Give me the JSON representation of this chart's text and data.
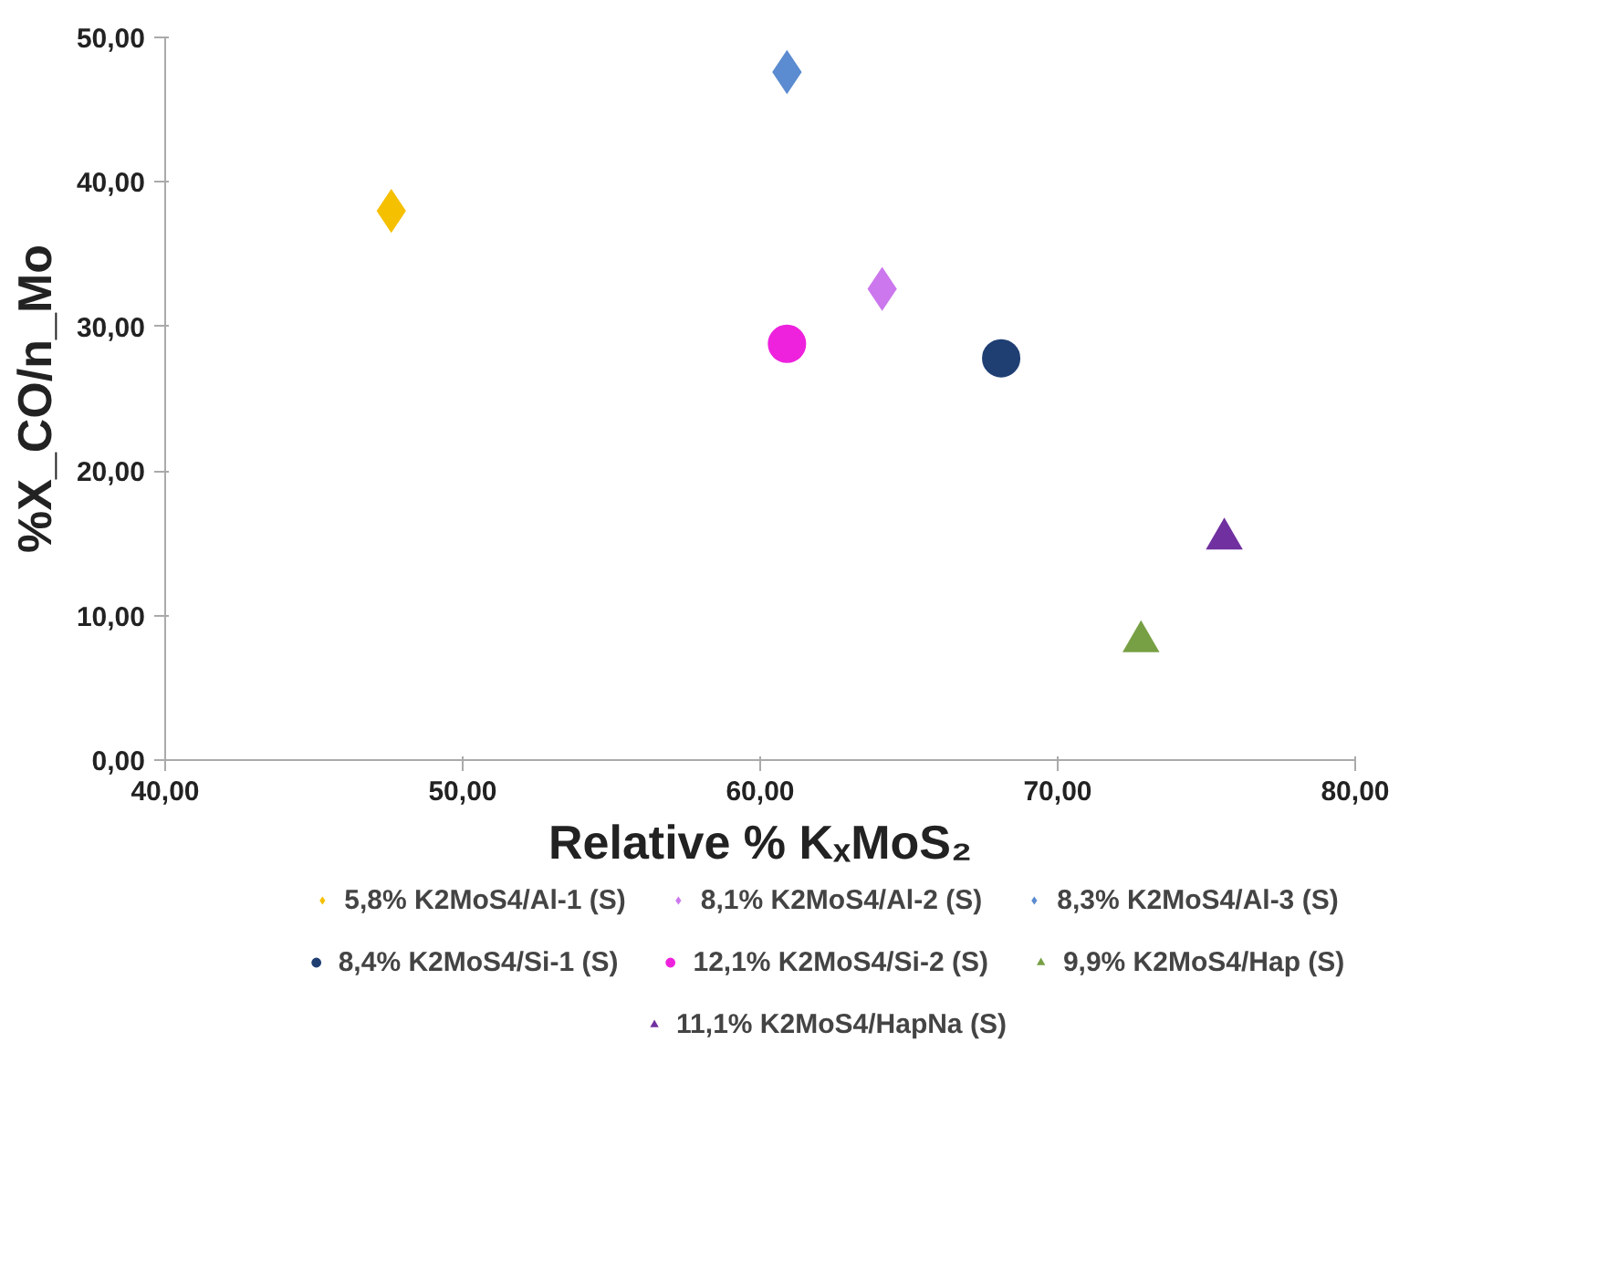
{
  "chart_data": {
    "type": "scatter",
    "xlabel": "Relative % KₓMoS₂",
    "ylabel": "%X_CO/n_Mo",
    "xlim": [
      40,
      80
    ],
    "ylim": [
      0,
      50
    ],
    "xticks": [
      {
        "value": 40,
        "label": "40,00"
      },
      {
        "value": 50,
        "label": "50,00"
      },
      {
        "value": 60,
        "label": "60,00"
      },
      {
        "value": 70,
        "label": "70,00"
      },
      {
        "value": 80,
        "label": "80,00"
      }
    ],
    "yticks": [
      {
        "value": 0,
        "label": "0,00"
      },
      {
        "value": 10,
        "label": "10,00"
      },
      {
        "value": 20,
        "label": "20,00"
      },
      {
        "value": 30,
        "label": "30,00"
      },
      {
        "value": 40,
        "label": "40,00"
      },
      {
        "value": 50,
        "label": "50,00"
      }
    ],
    "grid": false,
    "legend": "bottom",
    "series": [
      {
        "name": "5,8% K2MoS4/Al-1 (S)",
        "color": "#f5c000",
        "marker": "diamond",
        "x": [
          47.6
        ],
        "values": [
          38.0
        ]
      },
      {
        "name": "8,1% K2MoS4/Al-2 (S)",
        "color": "#cc77ee",
        "marker": "diamond",
        "x": [
          64.1
        ],
        "values": [
          32.6
        ]
      },
      {
        "name": "8,3% K2MoS4/Al-3 (S)",
        "color": "#5b8bd0",
        "marker": "diamond",
        "x": [
          60.9
        ],
        "values": [
          47.6
        ]
      },
      {
        "name": "8,4% K2MoS4/Si-1 (S)",
        "color": "#1f3f73",
        "marker": "circle",
        "x": [
          68.1
        ],
        "values": [
          27.8
        ]
      },
      {
        "name": "12,1% K2MoS4/Si-2 (S)",
        "color": "#ee22dd",
        "marker": "circle",
        "x": [
          60.9
        ],
        "values": [
          28.8
        ]
      },
      {
        "name": "9,9% K2MoS4/Hap (S)",
        "color": "#77a044",
        "marker": "triangle",
        "x": [
          72.8
        ],
        "values": [
          8.2
        ]
      },
      {
        "name": "11,1% K2MoS4/HapNa (S)",
        "color": "#7030a0",
        "marker": "triangle",
        "x": [
          75.6
        ],
        "values": [
          15.3
        ]
      }
    ]
  }
}
